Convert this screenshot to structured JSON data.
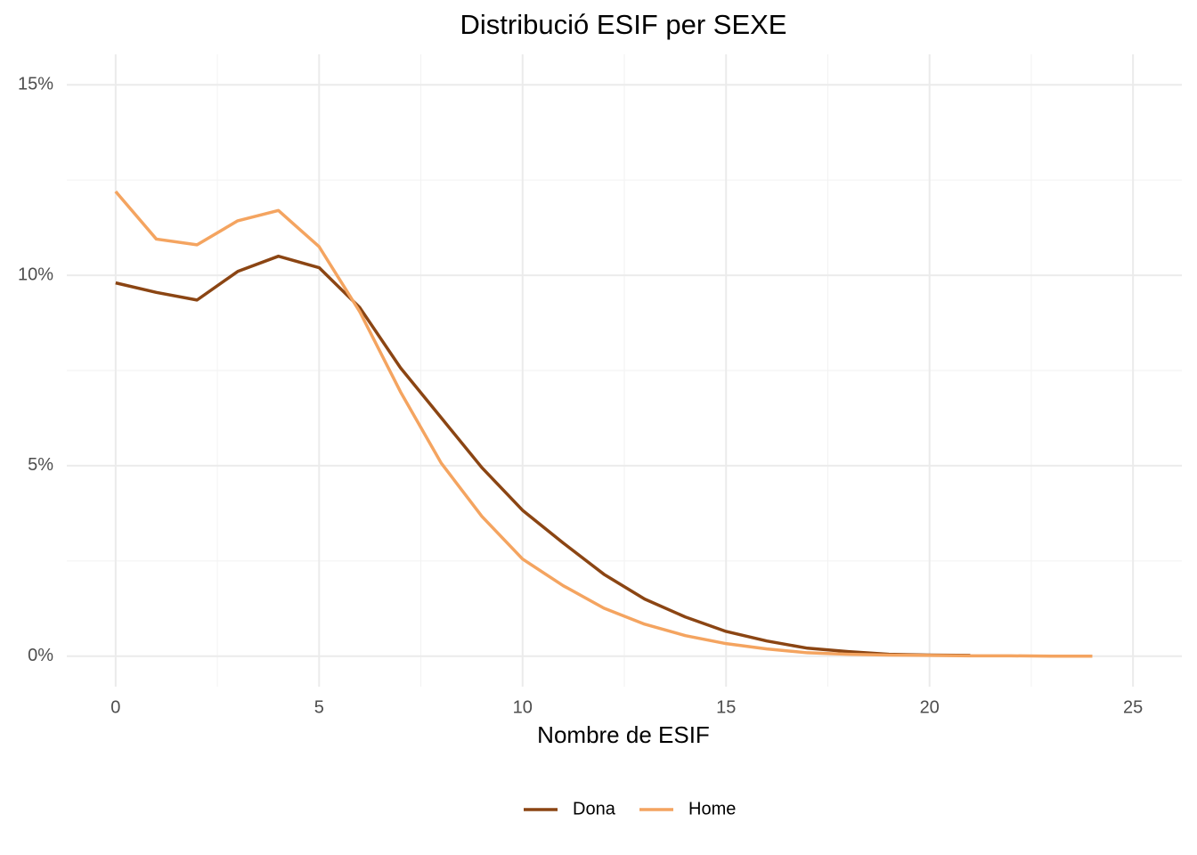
{
  "chart_data": {
    "type": "line",
    "title": "Distribució ESIF per SEXE",
    "x_label": "Nombre de ESIF",
    "x": [
      0,
      1,
      2,
      3,
      4,
      5,
      6,
      7,
      8,
      9,
      10,
      11,
      12,
      13,
      14,
      15,
      16,
      17,
      18,
      19,
      20,
      21,
      22,
      23,
      24
    ],
    "series": [
      {
        "name": "Dona",
        "color": "#8b4513",
        "values": [
          9.8,
          9.55,
          9.35,
          10.1,
          10.5,
          10.2,
          9.15,
          7.57,
          6.26,
          4.95,
          3.83,
          2.97,
          2.15,
          1.5,
          1.03,
          0.65,
          0.4,
          0.21,
          0.12,
          0.05,
          0.03,
          0.02,
          null,
          null,
          null
        ]
      },
      {
        "name": "Home",
        "color": "#f4a460",
        "values": [
          12.2,
          10.95,
          10.8,
          11.43,
          11.7,
          10.75,
          9.04,
          6.94,
          5.07,
          3.67,
          2.55,
          1.85,
          1.26,
          0.84,
          0.54,
          0.33,
          0.19,
          0.09,
          0.05,
          0.03,
          0.02,
          0.01,
          0.01,
          0,
          0
        ]
      }
    ],
    "xlim": [
      -1.2,
      26.2
    ],
    "xticks": [
      0,
      5,
      10,
      15,
      20,
      25
    ],
    "ylim": [
      -0.8,
      15.8
    ],
    "yticks": [
      {
        "value": 0,
        "label": "0%"
      },
      {
        "value": 5,
        "label": "5%"
      },
      {
        "value": 10,
        "label": "10%"
      },
      {
        "value": 15,
        "label": "15%"
      }
    ],
    "grid": true,
    "legend": "bottom"
  }
}
